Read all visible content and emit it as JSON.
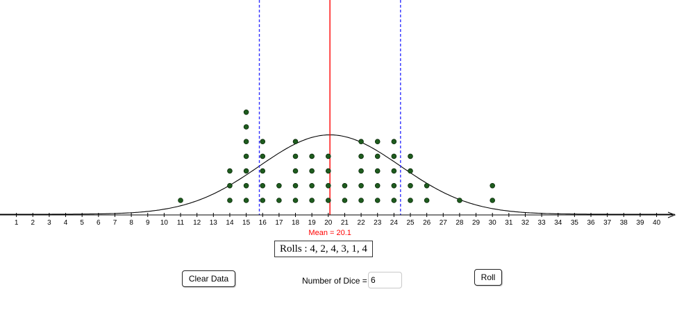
{
  "chart_data": {
    "type": "scatter",
    "subtype": "dot-plot",
    "x_ticks": [
      1,
      2,
      3,
      4,
      5,
      6,
      7,
      8,
      9,
      10,
      11,
      12,
      13,
      14,
      15,
      16,
      17,
      18,
      19,
      20,
      21,
      22,
      23,
      24,
      25,
      26,
      27,
      28,
      29,
      30,
      31,
      32,
      33,
      34,
      35,
      36,
      37,
      38,
      39,
      40
    ],
    "xlim": [
      0,
      41
    ],
    "stacks": [
      {
        "x": 11,
        "count": 1
      },
      {
        "x": 14,
        "count": 3
      },
      {
        "x": 15,
        "count": 7
      },
      {
        "x": 16,
        "count": 5
      },
      {
        "x": 17,
        "count": 2
      },
      {
        "x": 18,
        "count": 5
      },
      {
        "x": 19,
        "count": 4
      },
      {
        "x": 20,
        "count": 4
      },
      {
        "x": 21,
        "count": 2
      },
      {
        "x": 22,
        "count": 5
      },
      {
        "x": 23,
        "count": 5
      },
      {
        "x": 24,
        "count": 5
      },
      {
        "x": 25,
        "count": 4
      },
      {
        "x": 26,
        "count": 2
      },
      {
        "x": 28,
        "count": 1
      },
      {
        "x": 30,
        "count": 2
      }
    ],
    "mean": 20.1,
    "mean_label": "Mean = 20.1",
    "std_lines": [
      15.8,
      24.4
    ],
    "normal_curve": {
      "mean": 20.1,
      "sd": 4.3,
      "peak_count": 5.4
    },
    "colors": {
      "dots": "#1e5c1e",
      "mean_line": "#ff0000",
      "std_lines": "#3030ff",
      "curve": "#000000",
      "axis": "#000000"
    }
  },
  "rolls_text": "Rolls : 4, 2, 4, 3, 1, 4",
  "buttons": {
    "clear": "Clear Data",
    "roll": "Roll"
  },
  "dice": {
    "label": "Number of Dice =",
    "value": "6"
  }
}
